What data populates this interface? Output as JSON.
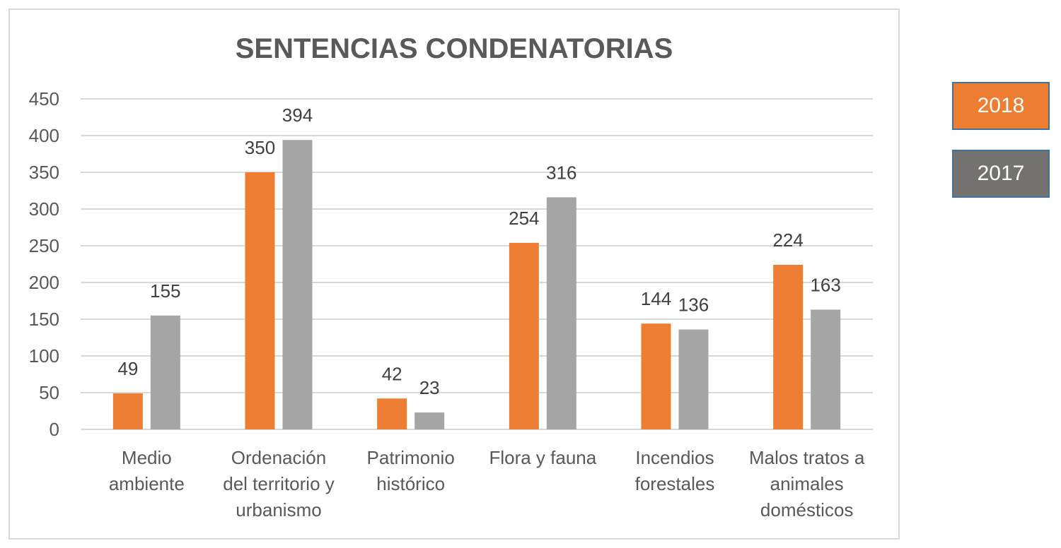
{
  "chart_data": {
    "type": "bar",
    "title": "SENTENCIAS CONDENATORIAS",
    "categories": [
      [
        "Medio",
        "ambiente"
      ],
      [
        "Ordenación",
        "del territorio y",
        "urbanismo"
      ],
      [
        "Patrimonio",
        "histórico"
      ],
      [
        "Flora y fauna"
      ],
      [
        "Incendios",
        "forestales"
      ],
      [
        "Malos tratos a",
        "animales",
        "domésticos"
      ]
    ],
    "series": [
      {
        "name": "2018",
        "color": "#ed7d31",
        "values": [
          49,
          350,
          42,
          254,
          144,
          224
        ]
      },
      {
        "name": "2017",
        "color": "#a5a5a5",
        "values": [
          155,
          394,
          23,
          316,
          136,
          163
        ]
      }
    ],
    "ylim": [
      0,
      450
    ],
    "yticks": [
      0,
      50,
      100,
      150,
      200,
      250,
      300,
      350,
      400,
      450
    ],
    "grid": true,
    "legend_position": "right"
  },
  "legend": [
    {
      "label": "2018",
      "color": "#ed7d31"
    },
    {
      "label": "2017",
      "color": "#767171"
    }
  ]
}
